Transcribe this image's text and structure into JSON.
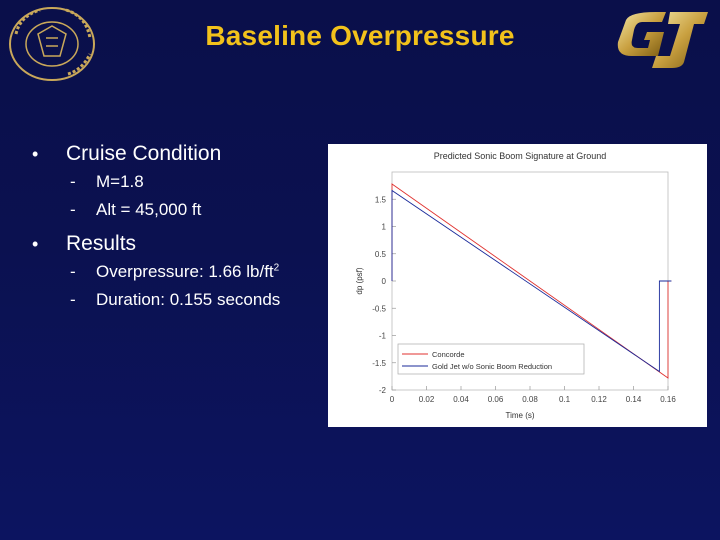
{
  "slide": {
    "title": "Baseline Overpressure",
    "logo_left_text": "purdue university",
    "logo_right_text": "GJ"
  },
  "bullets": [
    {
      "label": "Cruise Condition",
      "items": [
        {
          "text": "M=1.8"
        },
        {
          "text": "Alt = 45,000 ft"
        }
      ]
    },
    {
      "label": "Results",
      "items": [
        {
          "text": "Overpressure: 1.66 lb/ft",
          "sup": "2"
        },
        {
          "text": "Duration: 0.155 seconds"
        }
      ]
    }
  ],
  "colors": {
    "title": "#f2c21b",
    "concorde": "#e0322f",
    "goldjet": "#1a2a9a"
  },
  "chart_data": {
    "type": "line",
    "title": "Predicted Sonic Boom Signature at Ground",
    "xlabel": "Time (s)",
    "ylabel": "dp (psf)",
    "xlim": [
      0,
      0.16
    ],
    "ylim": [
      -2,
      2
    ],
    "xticks": [
      "0",
      "0.02",
      "0.04",
      "0.06",
      "0.08",
      "0.1",
      "0.12",
      "0.14",
      "0.16"
    ],
    "yticks": [
      "1.5",
      "1",
      "0.5",
      "0",
      "-0.5",
      "-1",
      "-1.5",
      "-2"
    ],
    "legend_position": "bottom-left",
    "series": [
      {
        "name": "Concorde",
        "color": "#e0322f",
        "x": [
          0,
          0.0,
          0.16,
          0.16,
          0.162
        ],
        "y": [
          0,
          1.78,
          -1.78,
          0,
          0
        ]
      },
      {
        "name": "Gold Jet w/o Sonic Boom Reduction",
        "color": "#1a2a9a",
        "x": [
          0,
          0.0,
          0.155,
          0.155,
          0.162
        ],
        "y": [
          0,
          1.66,
          -1.66,
          0,
          0
        ]
      }
    ]
  }
}
